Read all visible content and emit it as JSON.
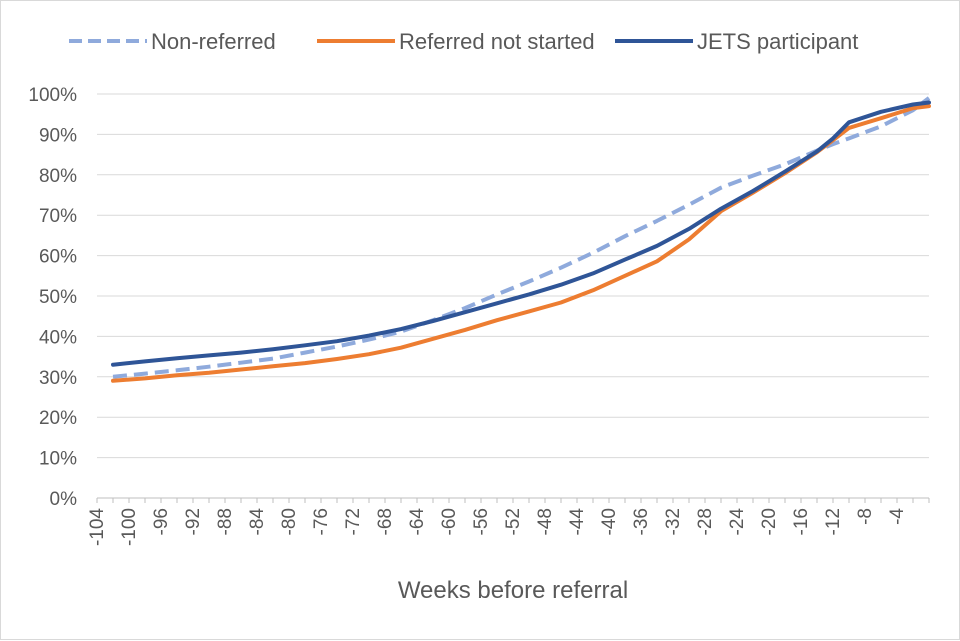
{
  "chart_data": {
    "type": "line",
    "xlabel": "Weeks before referral",
    "ylabel": "",
    "x_ticks": [
      -104,
      -100,
      -96,
      -92,
      -88,
      -84,
      -80,
      -76,
      -72,
      -68,
      -64,
      -60,
      -56,
      -52,
      -48,
      -44,
      -40,
      -36,
      -32,
      -28,
      -24,
      -20,
      -16,
      -12,
      -8,
      -4
    ],
    "x_tick_labels": [
      "-104",
      "-100",
      "-96",
      "-92",
      "-88",
      "-84",
      "-80",
      "-76",
      "-72",
      "-68",
      "-64",
      "-60",
      "-56",
      "-52",
      "-48",
      "-44",
      "-40",
      "-36",
      "-32",
      "-28",
      "-24",
      "-20",
      "-16",
      "-12",
      "-8",
      "-4"
    ],
    "xlim": [
      -104,
      0
    ],
    "ylim": [
      0,
      100
    ],
    "y_ticks": [
      0,
      10,
      20,
      30,
      40,
      50,
      60,
      70,
      80,
      90,
      100
    ],
    "y_tick_labels": [
      "0%",
      "10%",
      "20%",
      "30%",
      "40%",
      "50%",
      "60%",
      "70%",
      "80%",
      "90%",
      "100%"
    ],
    "y_unit": "%",
    "grid": true,
    "legend": "top",
    "x": [
      -102,
      -98,
      -94,
      -90,
      -86,
      -82,
      -78,
      -74,
      -70,
      -66,
      -62,
      -58,
      -54,
      -50,
      -46,
      -42,
      -38,
      -34,
      -30,
      -26,
      -22,
      -18,
      -14,
      -12,
      -10,
      -6,
      -2,
      0
    ],
    "series": [
      {
        "name": "Non-referred",
        "color": "#8faadc",
        "style": "dashed",
        "values": [
          30.0,
          30.8,
          31.6,
          32.5,
          33.5,
          34.5,
          36.0,
          37.5,
          39.2,
          41.2,
          44.0,
          47.0,
          50.4,
          53.6,
          57.0,
          60.7,
          64.8,
          68.6,
          72.6,
          76.8,
          79.8,
          82.6,
          86.0,
          87.6,
          89.0,
          92.0,
          96.0,
          99.0
        ]
      },
      {
        "name": "Referred not started",
        "color": "#ed7d31",
        "style": "solid",
        "values": [
          29.0,
          29.6,
          30.4,
          31.0,
          31.8,
          32.6,
          33.4,
          34.4,
          35.6,
          37.2,
          39.4,
          41.6,
          44.0,
          46.2,
          48.4,
          51.4,
          55.0,
          58.6,
          64.0,
          71.0,
          75.6,
          80.4,
          85.6,
          88.6,
          91.6,
          94.0,
          96.5,
          97.0
        ]
      },
      {
        "name": "JETS participant",
        "color": "#2f5597",
        "style": "solid",
        "values": [
          33.0,
          33.8,
          34.6,
          35.3,
          36.0,
          36.8,
          37.8,
          38.8,
          40.2,
          41.8,
          43.8,
          46.0,
          48.2,
          50.4,
          52.8,
          55.6,
          59.0,
          62.4,
          66.6,
          71.6,
          76.0,
          80.8,
          85.8,
          89.0,
          93.0,
          95.6,
          97.4,
          97.9
        ]
      }
    ]
  }
}
